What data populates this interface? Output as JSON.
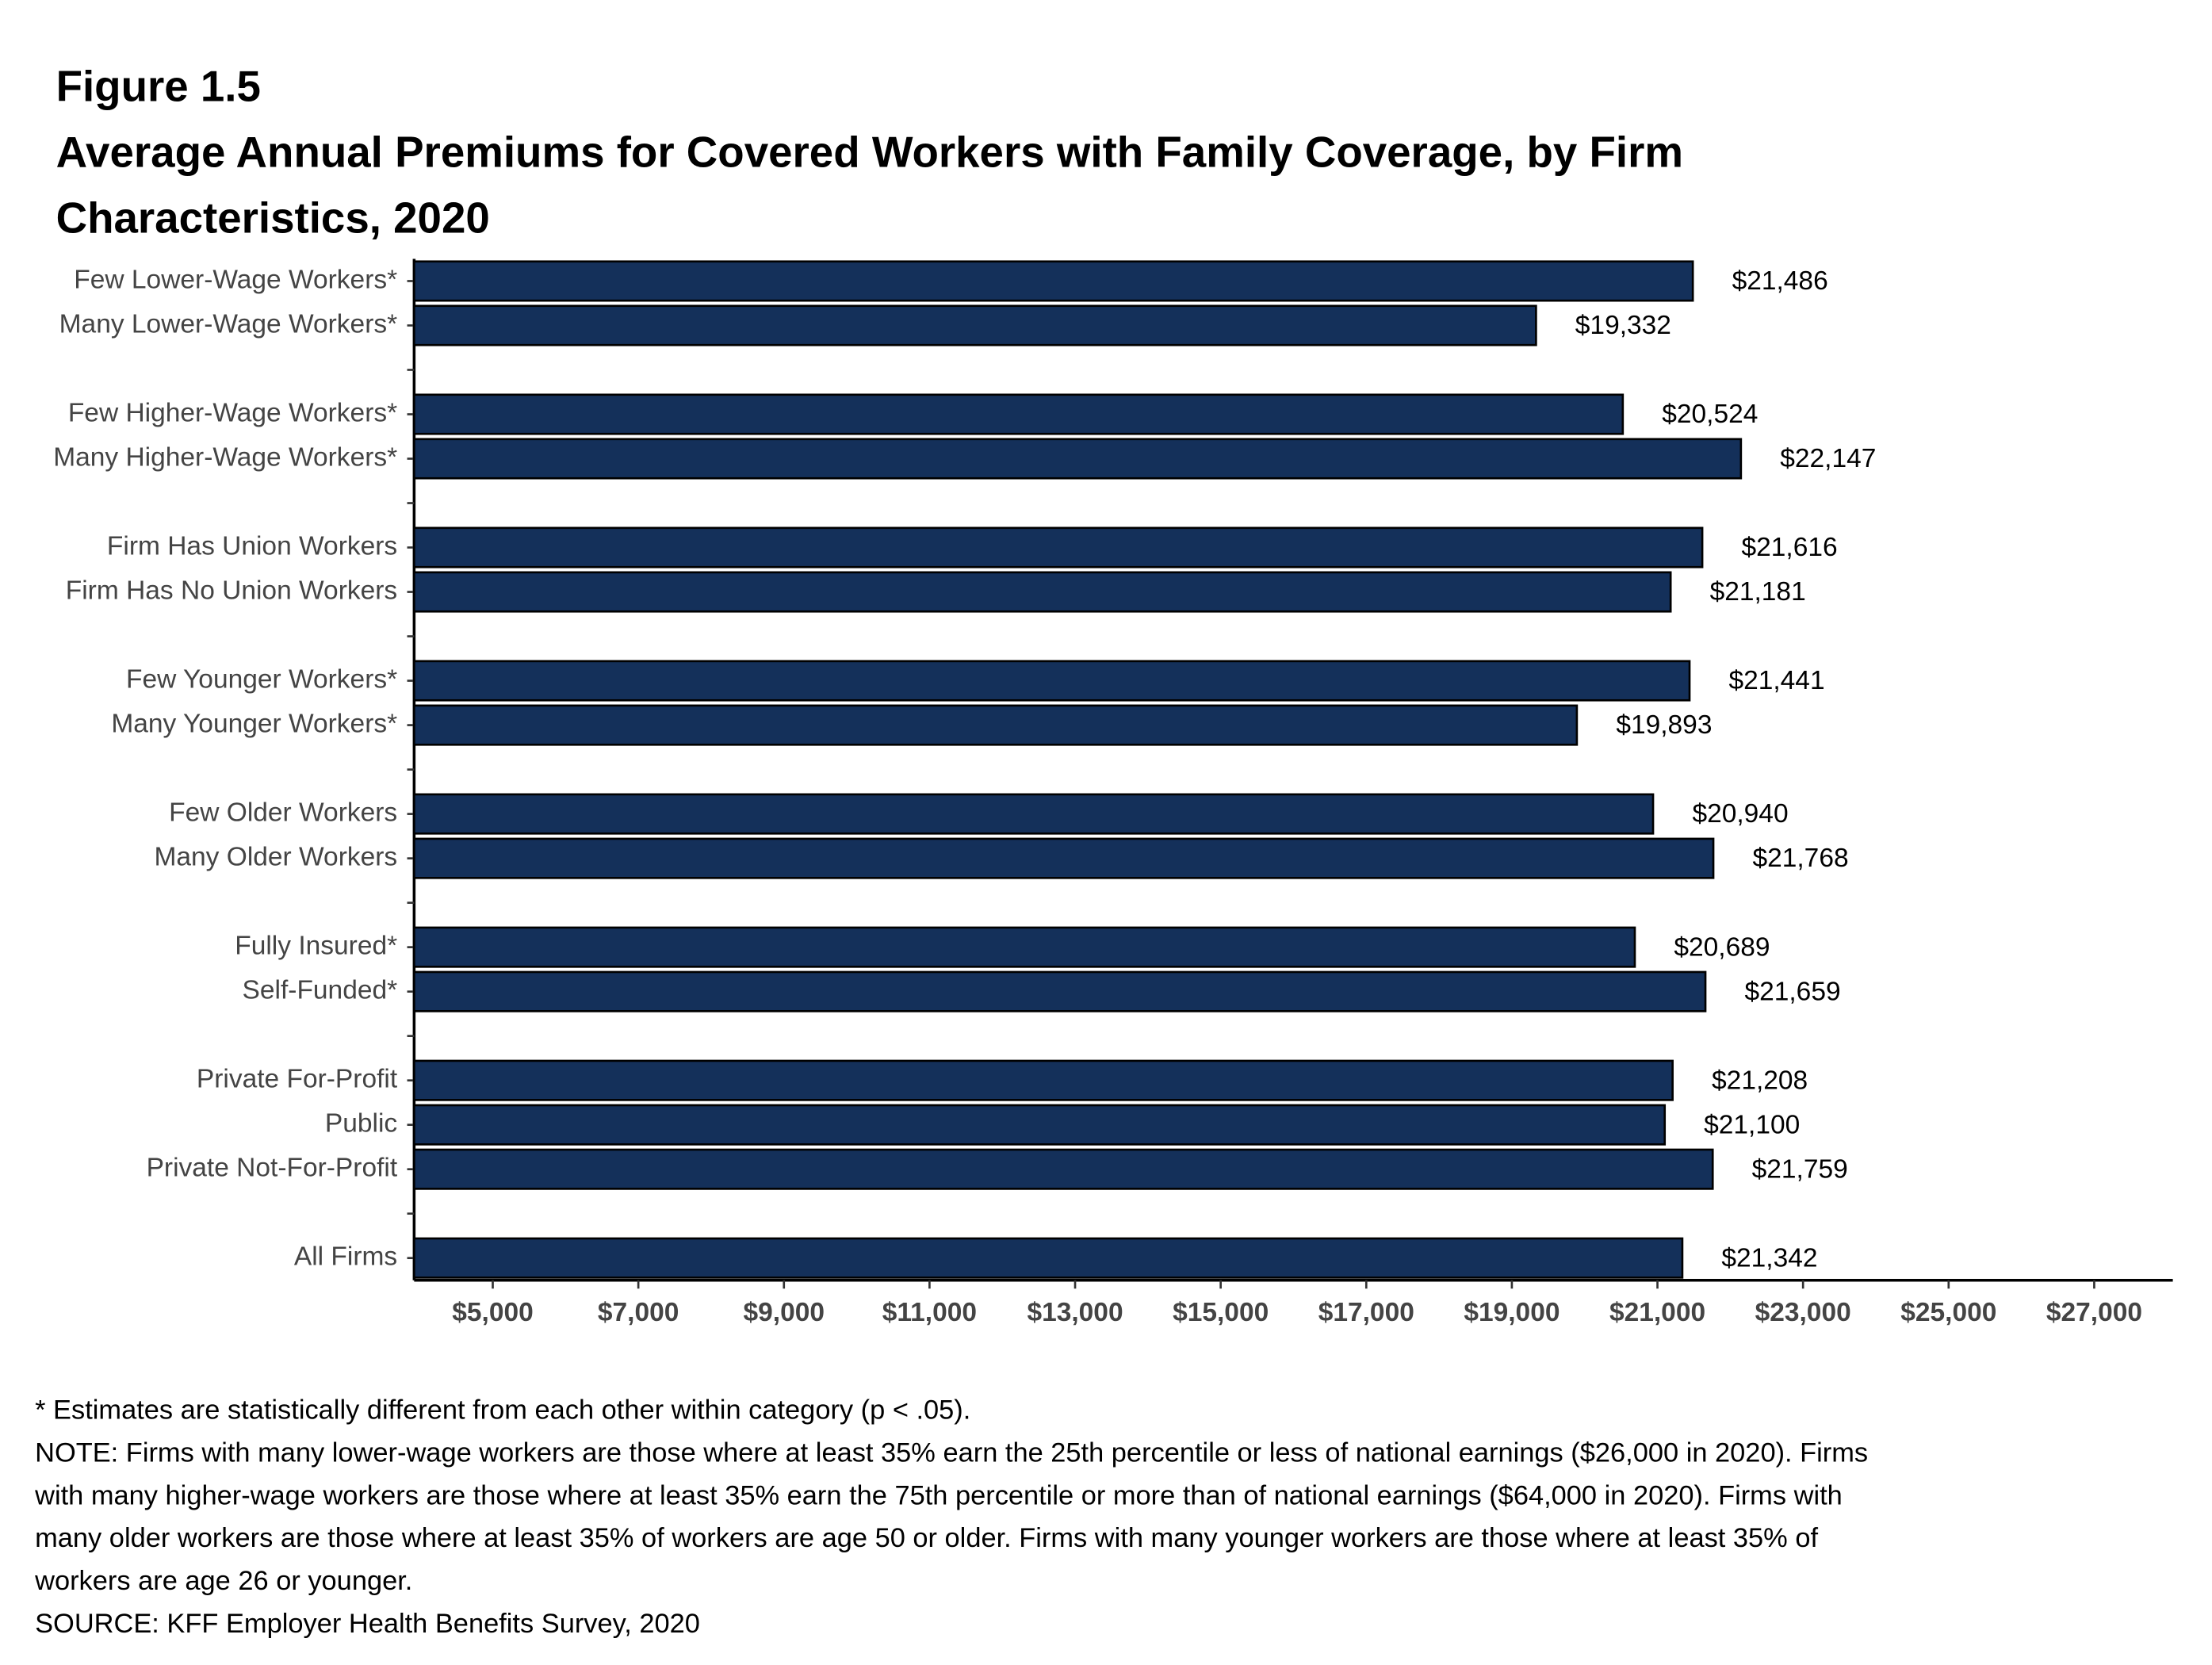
{
  "chart_data": {
    "type": "bar",
    "orientation": "horizontal",
    "figure_label": "Figure 1.5",
    "title": [
      "Average Annual Premiums for Covered Workers with Family Coverage, by Firm",
      "Characteristics, 2020"
    ],
    "categories": [
      "Few Lower-Wage Workers*",
      "Many Lower-Wage Workers*",
      null,
      "Few Higher-Wage Workers*",
      "Many Higher-Wage Workers*",
      null,
      "Firm Has Union Workers",
      "Firm Has No Union Workers",
      null,
      "Few Younger Workers*",
      "Many Younger Workers*",
      null,
      "Few Older Workers",
      "Many Older Workers",
      null,
      "Fully Insured*",
      "Self-Funded*",
      null,
      "Private For-Profit",
      "Public",
      "Private Not-For-Profit",
      null,
      "All Firms"
    ],
    "values": [
      21486,
      19332,
      null,
      20524,
      22147,
      null,
      21616,
      21181,
      null,
      21441,
      19893,
      null,
      20940,
      21768,
      null,
      20689,
      21659,
      null,
      21208,
      21100,
      21759,
      null,
      21342
    ],
    "value_labels": [
      "$21,486",
      "$19,332",
      null,
      "$20,524",
      "$22,147",
      null,
      "$21,616",
      "$21,181",
      null,
      "$21,441",
      "$19,893",
      null,
      "$20,940",
      "$21,768",
      null,
      "$20,689",
      "$21,659",
      null,
      "$21,208",
      "$21,100",
      "$21,759",
      null,
      "$21,342"
    ],
    "color": "#14305a",
    "xlim": [
      3920,
      28080
    ],
    "xticks": [
      {
        "value": 5000,
        "label": "$5,000"
      },
      {
        "value": 7000,
        "label": "$7,000"
      },
      {
        "value": 9000,
        "label": "$9,000"
      },
      {
        "value": 11000,
        "label": "$11,000"
      },
      {
        "value": 13000,
        "label": "$13,000"
      },
      {
        "value": 15000,
        "label": "$15,000"
      },
      {
        "value": 17000,
        "label": "$17,000"
      },
      {
        "value": 19000,
        "label": "$19,000"
      },
      {
        "value": 21000,
        "label": "$21,000"
      },
      {
        "value": 23000,
        "label": "$23,000"
      },
      {
        "value": 25000,
        "label": "$25,000"
      },
      {
        "value": 27000,
        "label": "$27,000"
      }
    ],
    "grid": false,
    "notes": [
      "* Estimates are statistically different from each other within category (p < .05).",
      "NOTE: Firms with many lower-wage workers are those where at least 35% earn the 25th percentile or less of national earnings ($26,000 in 2020). Firms",
      "with many higher-wage workers are those where at least 35% earn the 75th percentile or more than of national earnings ($64,000 in 2020). Firms with",
      "many older workers are those where at least 35% of workers are age 50 or older. Firms with many younger workers are those where at least 35% of",
      "workers are age 26 or younger.",
      "SOURCE: KFF Employer Health Benefits Survey, 2020"
    ]
  }
}
